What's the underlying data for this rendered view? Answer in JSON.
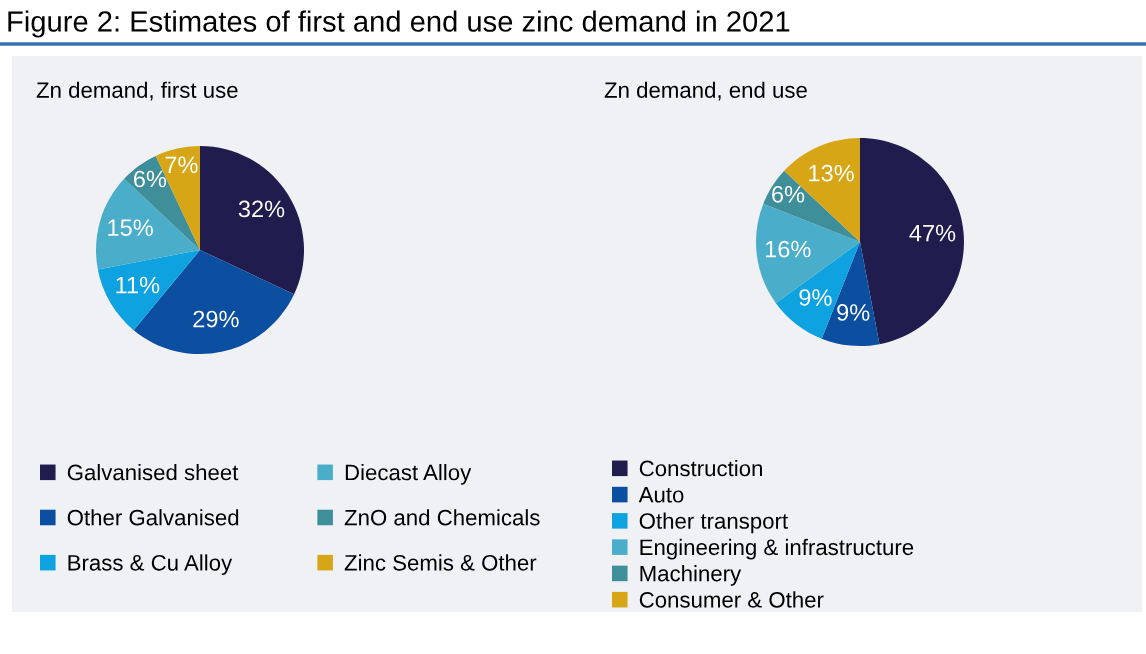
{
  "chart_data": [
    {
      "type": "pie",
      "title": "Figure 2: Estimates of first and end use zinc demand in 2021",
      "subtitle": "Zn demand, first use",
      "categories": [
        "Galvanised sheet",
        "Other Galvanised",
        "Brass & Cu Alloy",
        "Diecast Alloy",
        "ZnO and Chemicals",
        "Zinc Semis & Other"
      ],
      "values": [
        32,
        29,
        11,
        15,
        6,
        7
      ],
      "colors": [
        "#211c4e",
        "#0c4fa0",
        "#0ea2e0",
        "#4aaecb",
        "#3f8f9b",
        "#d6a617"
      ],
      "value_labels": [
        "32%",
        "29%",
        "11%",
        "15%",
        "6%",
        "7%"
      ],
      "legend": "bottom"
    },
    {
      "type": "pie",
      "subtitle": "Zn demand, end use",
      "categories": [
        "Construction",
        "Auto",
        "Other transport",
        "Engineering & infrastructure",
        "Machinery",
        "Consumer & Other"
      ],
      "values": [
        47,
        9,
        9,
        16,
        6,
        13
      ],
      "colors": [
        "#211c4e",
        "#0c4fa0",
        "#0ea2e0",
        "#4aaecb",
        "#3f8f9b",
        "#d6a617"
      ],
      "value_labels": [
        "47%",
        "9%",
        "9%",
        "16%",
        "6%",
        "13%"
      ],
      "legend": "bottom"
    }
  ]
}
